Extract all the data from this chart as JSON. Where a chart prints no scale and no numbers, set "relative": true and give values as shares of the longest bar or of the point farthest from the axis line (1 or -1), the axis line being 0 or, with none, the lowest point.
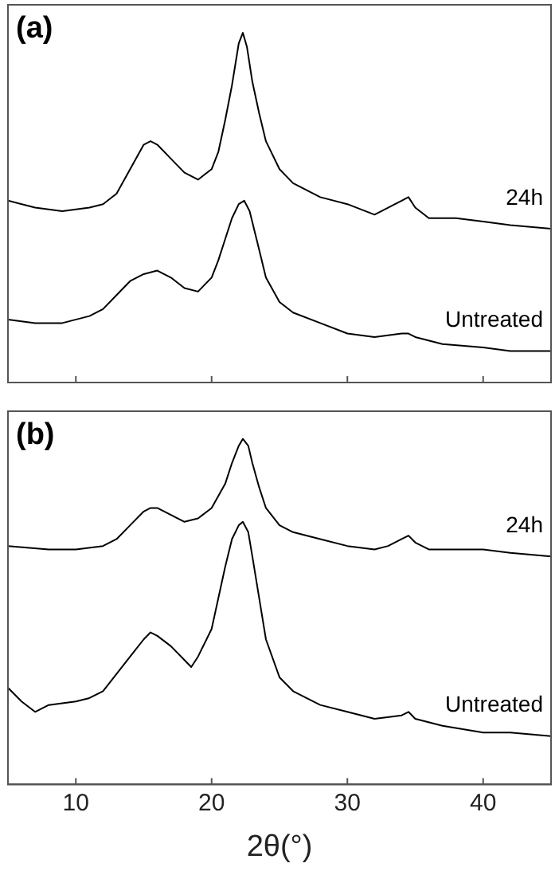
{
  "chart_data": [
    {
      "type": "line",
      "title": "(a)",
      "relative": true,
      "marker": "none",
      "tick_labels": false,
      "xlim": [
        5,
        45
      ],
      "xticks": [
        10,
        20,
        30,
        40
      ],
      "series": [
        {
          "name": "24h",
          "color": "#000000",
          "x": [
            5,
            7,
            9,
            11,
            12,
            13,
            14,
            15,
            15.5,
            16,
            17,
            18,
            19,
            20,
            20.5,
            21,
            21.5,
            22,
            22.3,
            22.6,
            23,
            23.5,
            24,
            25,
            26,
            28,
            30,
            32,
            33,
            34,
            34.5,
            35,
            36,
            38,
            40,
            42,
            45
          ],
          "values": [
            0.52,
            0.5,
            0.49,
            0.5,
            0.51,
            0.54,
            0.61,
            0.68,
            0.69,
            0.68,
            0.64,
            0.6,
            0.58,
            0.61,
            0.66,
            0.75,
            0.85,
            0.97,
            1,
            0.96,
            0.86,
            0.77,
            0.69,
            0.61,
            0.57,
            0.53,
            0.51,
            0.48,
            0.5,
            0.52,
            0.53,
            0.5,
            0.47,
            0.47,
            0.46,
            0.45,
            0.44
          ]
        },
        {
          "name": "Untreated",
          "color": "#000000",
          "x": [
            5,
            7,
            9,
            11,
            12,
            13,
            14,
            15,
            16,
            17,
            18,
            19,
            20,
            20.5,
            21,
            21.5,
            22,
            22.4,
            22.8,
            23.5,
            24,
            25,
            26,
            28,
            30,
            32,
            34,
            34.5,
            35,
            37,
            40,
            42,
            45
          ],
          "values": [
            0.18,
            0.17,
            0.17,
            0.19,
            0.21,
            0.25,
            0.29,
            0.31,
            0.32,
            0.3,
            0.27,
            0.26,
            0.3,
            0.35,
            0.41,
            0.47,
            0.51,
            0.52,
            0.49,
            0.38,
            0.3,
            0.23,
            0.2,
            0.17,
            0.14,
            0.13,
            0.14,
            0.14,
            0.13,
            0.11,
            0.1,
            0.09,
            0.09
          ]
        }
      ]
    },
    {
      "type": "line",
      "title": "(b)",
      "xlabel": "2θ(°)",
      "relative": true,
      "marker": "none",
      "tick_labels": "x",
      "xlim": [
        5,
        45
      ],
      "xticks": [
        10,
        20,
        30,
        40
      ],
      "series": [
        {
          "name": "24h",
          "color": "#000000",
          "x": [
            5,
            8,
            10,
            12,
            13,
            14,
            15,
            15.5,
            16,
            17,
            18,
            19,
            20,
            21,
            21.5,
            22,
            22.3,
            22.7,
            23,
            23.5,
            24,
            25,
            26,
            28,
            30,
            32,
            33,
            34,
            34.5,
            35,
            36,
            38,
            40,
            42,
            45
          ],
          "values": [
            0.69,
            0.68,
            0.68,
            0.69,
            0.71,
            0.75,
            0.79,
            0.8,
            0.8,
            0.78,
            0.76,
            0.77,
            0.8,
            0.87,
            0.93,
            0.98,
            1,
            0.98,
            0.93,
            0.86,
            0.8,
            0.75,
            0.73,
            0.71,
            0.69,
            0.68,
            0.69,
            0.71,
            0.72,
            0.7,
            0.68,
            0.68,
            0.68,
            0.67,
            0.66
          ]
        },
        {
          "name": "Untreated",
          "color": "#000000",
          "x": [
            5,
            6,
            7,
            8,
            10,
            11,
            12,
            13,
            14,
            15,
            15.5,
            16,
            17,
            18,
            18.5,
            19,
            20,
            20.5,
            21,
            21.5,
            22,
            22.3,
            22.7,
            23,
            23.5,
            24,
            25,
            26,
            28,
            30,
            32,
            34,
            34.5,
            35,
            37,
            40,
            42,
            45
          ],
          "values": [
            0.28,
            0.24,
            0.21,
            0.23,
            0.24,
            0.25,
            0.27,
            0.32,
            0.37,
            0.42,
            0.44,
            0.43,
            0.4,
            0.36,
            0.34,
            0.37,
            0.45,
            0.54,
            0.63,
            0.71,
            0.75,
            0.76,
            0.73,
            0.66,
            0.54,
            0.42,
            0.31,
            0.27,
            0.23,
            0.21,
            0.19,
            0.2,
            0.21,
            0.19,
            0.17,
            0.15,
            0.15,
            0.14
          ]
        }
      ]
    }
  ]
}
